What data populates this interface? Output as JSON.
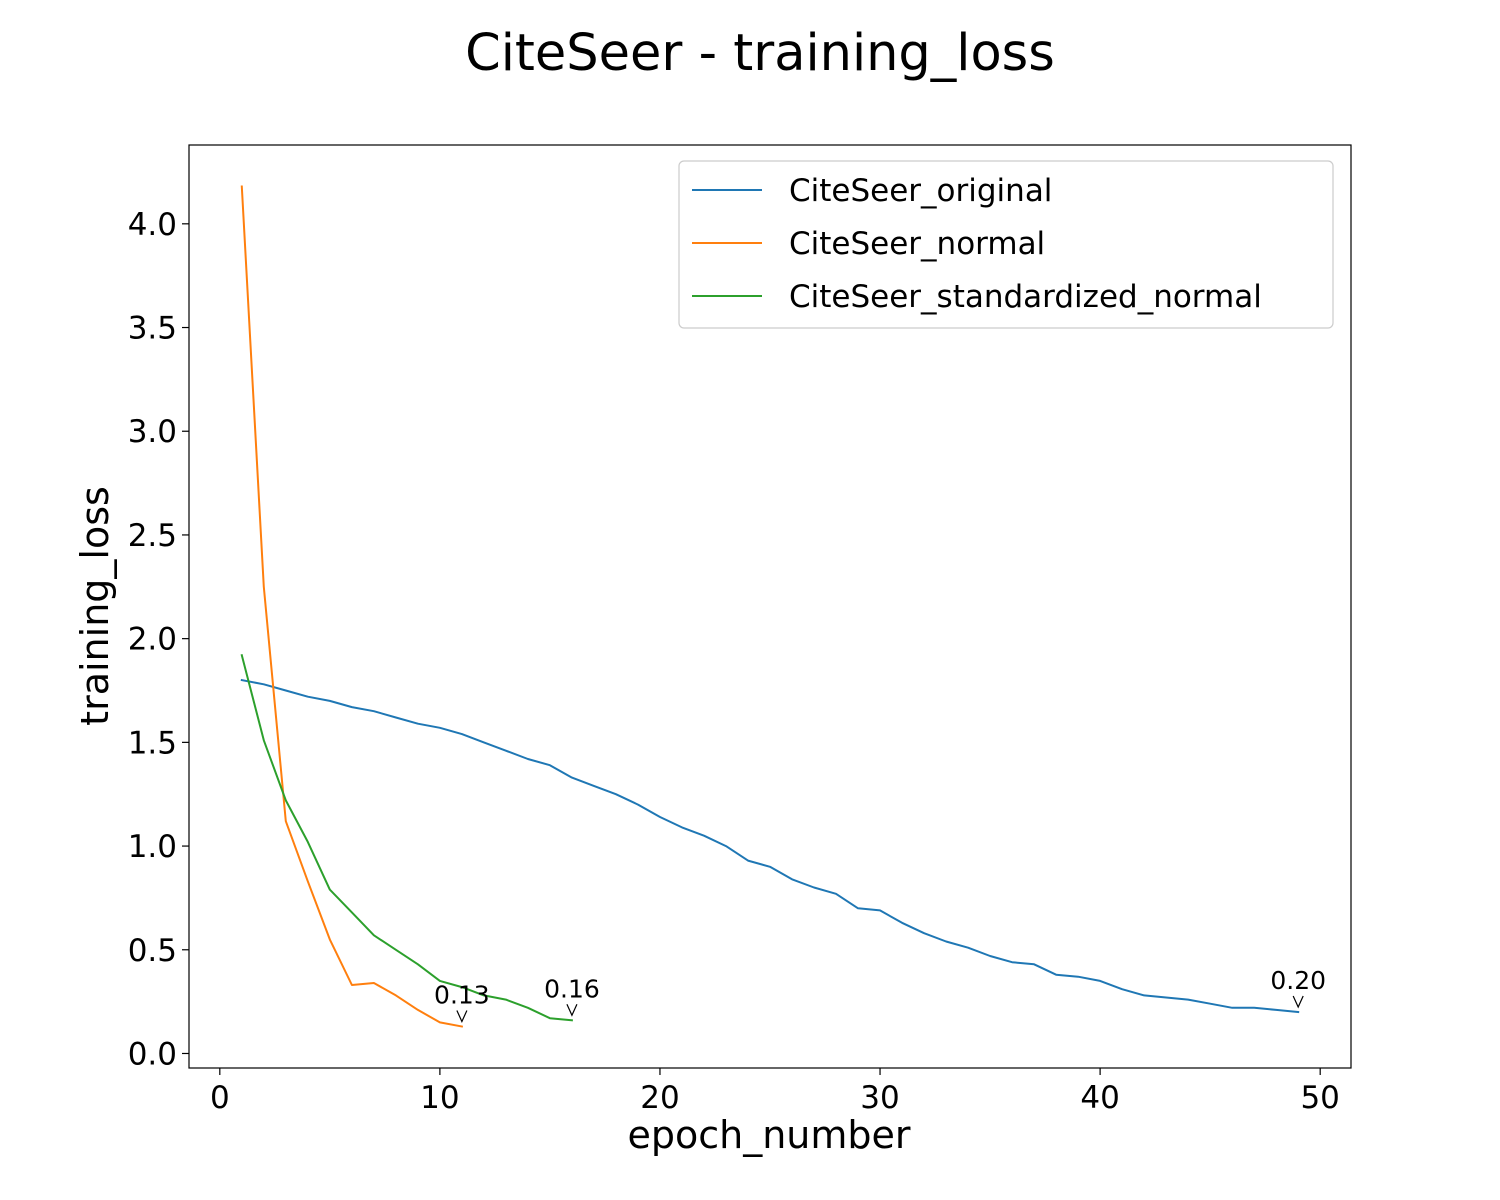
{
  "chart_data": {
    "type": "line",
    "title": "CiteSeer - training_loss",
    "xlabel": "epoch_number",
    "ylabel": "training_loss",
    "xlim": [
      -1.4,
      51.4
    ],
    "ylim": [
      -0.07,
      4.38
    ],
    "x_ticks": [
      0,
      10,
      20,
      30,
      40,
      50
    ],
    "x_tick_labels": [
      "0",
      "10",
      "20",
      "30",
      "40",
      "50"
    ],
    "y_ticks": [
      0.0,
      0.5,
      1.0,
      1.5,
      2.0,
      2.5,
      3.0,
      3.5,
      4.0
    ],
    "y_tick_labels": [
      "0.0",
      "0.5",
      "1.0",
      "1.5",
      "2.0",
      "2.5",
      "3.0",
      "3.5",
      "4.0"
    ],
    "grid": false,
    "legend_position": "top-right",
    "series": [
      {
        "name": "CiteSeer_original",
        "color": "#1f77b4",
        "x": [
          1,
          2,
          3,
          4,
          5,
          6,
          7,
          8,
          9,
          10,
          11,
          12,
          13,
          14,
          15,
          16,
          17,
          18,
          19,
          20,
          21,
          22,
          23,
          24,
          25,
          26,
          27,
          28,
          29,
          30,
          31,
          32,
          33,
          34,
          35,
          36,
          37,
          38,
          39,
          40,
          41,
          42,
          43,
          44,
          45,
          46,
          47,
          48,
          49
        ],
        "y": [
          1.8,
          1.78,
          1.75,
          1.72,
          1.7,
          1.67,
          1.65,
          1.62,
          1.59,
          1.57,
          1.54,
          1.5,
          1.46,
          1.42,
          1.39,
          1.33,
          1.29,
          1.25,
          1.2,
          1.14,
          1.09,
          1.05,
          1.0,
          0.93,
          0.9,
          0.84,
          0.8,
          0.77,
          0.7,
          0.69,
          0.63,
          0.58,
          0.54,
          0.51,
          0.47,
          0.44,
          0.43,
          0.38,
          0.37,
          0.35,
          0.31,
          0.28,
          0.27,
          0.26,
          0.24,
          0.22,
          0.22,
          0.21,
          0.2
        ]
      },
      {
        "name": "CiteSeer_normal",
        "color": "#ff7f0e",
        "x": [
          1,
          2,
          3,
          4,
          5,
          6,
          7,
          8,
          9,
          10,
          11
        ],
        "y": [
          4.18,
          2.25,
          1.12,
          0.83,
          0.55,
          0.33,
          0.34,
          0.28,
          0.21,
          0.15,
          0.13
        ]
      },
      {
        "name": "CiteSeer_standardized_normal",
        "color": "#2ca02c",
        "x": [
          1,
          2,
          3,
          4,
          5,
          6,
          7,
          8,
          9,
          10,
          11,
          12,
          13,
          14,
          15,
          16
        ],
        "y": [
          1.92,
          1.51,
          1.22,
          1.02,
          0.79,
          0.68,
          0.57,
          0.5,
          0.43,
          0.35,
          0.32,
          0.28,
          0.26,
          0.22,
          0.17,
          0.16
        ]
      }
    ],
    "annotations": [
      {
        "text": "0.13",
        "x": 11,
        "y": 0.13
      },
      {
        "text": "0.16",
        "x": 16,
        "y": 0.16
      },
      {
        "text": "0.20",
        "x": 49,
        "y": 0.2
      }
    ]
  }
}
